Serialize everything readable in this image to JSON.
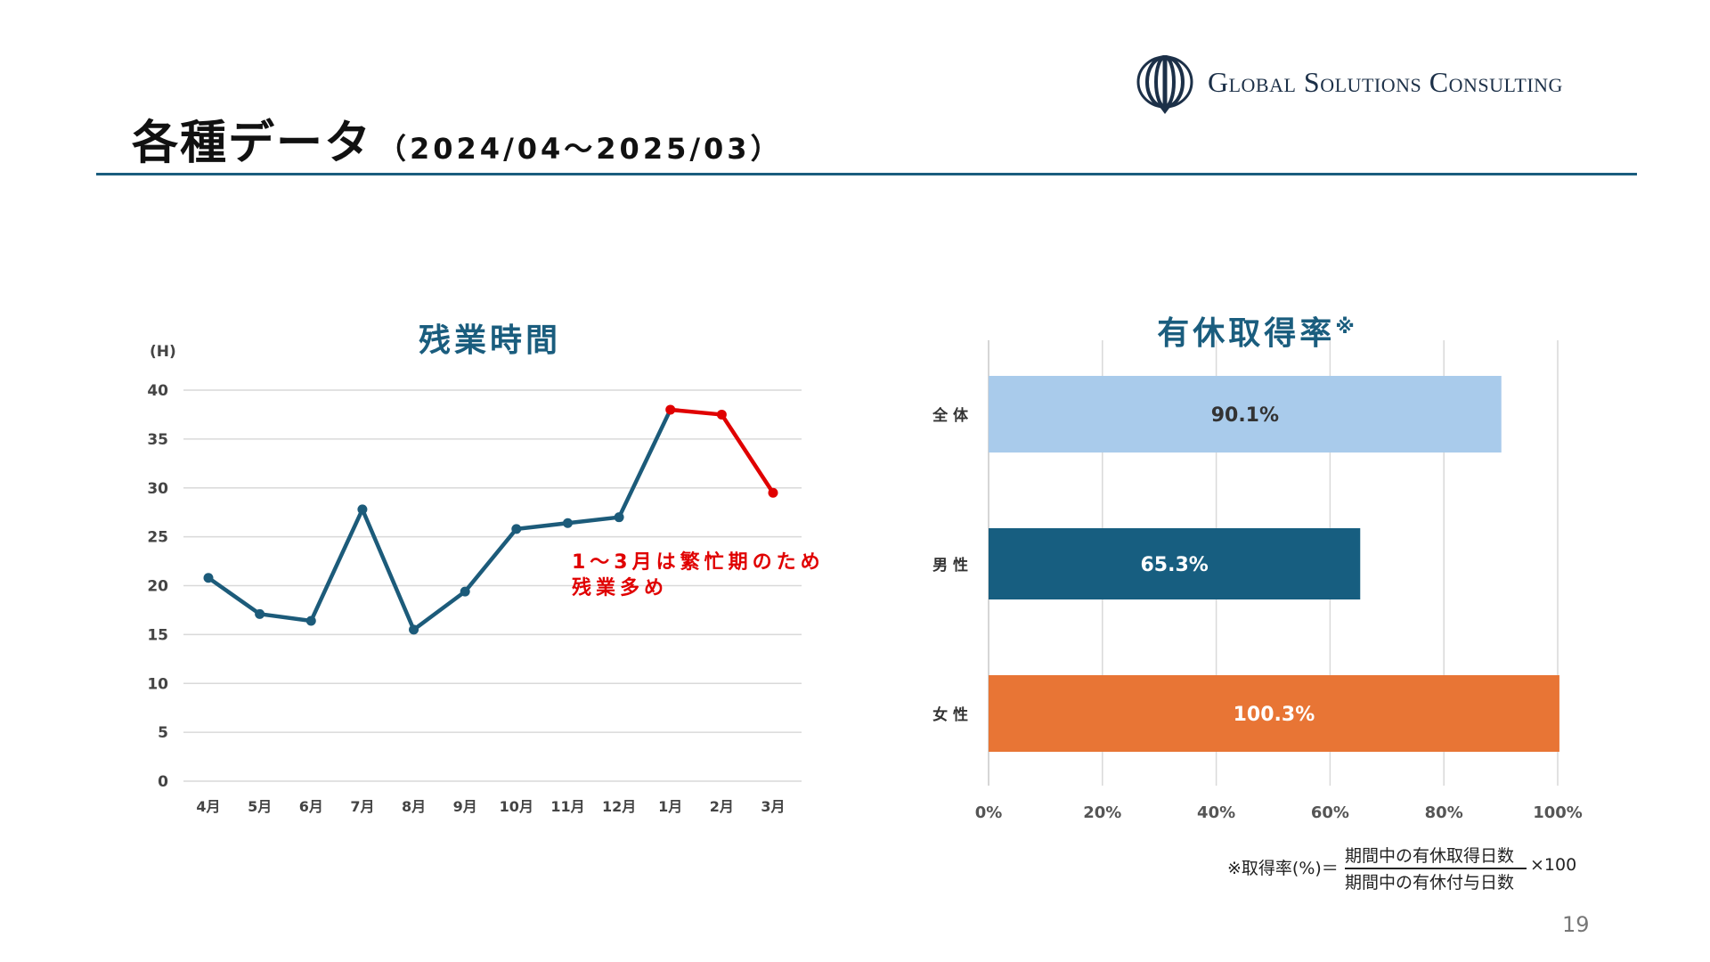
{
  "header": {
    "title": "各種データ",
    "period": "（2024/04～2025/03）"
  },
  "logo": {
    "text": "Global Solutions Consulting",
    "color": "#1c3048"
  },
  "colors": {
    "accent": "#1a5d7e",
    "line": "#1c5b7a",
    "highlight": "#e00000",
    "bar_all": "#a9cbeb",
    "bar_male": "#175e80",
    "bar_female": "#e87535",
    "grid": "#d9d9d9"
  },
  "chart_data": [
    {
      "type": "line",
      "title": "残業時間",
      "ylabel": "(H)",
      "categories": [
        "4月",
        "5月",
        "6月",
        "7月",
        "8月",
        "9月",
        "10月",
        "11月",
        "12月",
        "1月",
        "2月",
        "3月"
      ],
      "values": [
        20.8,
        17.1,
        16.4,
        27.8,
        15.5,
        19.4,
        25.8,
        26.4,
        27.0,
        38.0,
        37.5,
        29.5
      ],
      "highlight_from_index": 9,
      "ylim": [
        0,
        40
      ],
      "yticks": [
        0,
        5,
        10,
        15,
        20,
        25,
        30,
        35,
        40
      ],
      "grid": true,
      "annotation": [
        "1～3月は繁忙期のため",
        "残業多め"
      ]
    },
    {
      "type": "bar",
      "orientation": "horizontal",
      "title": "有休取得率",
      "title_mark": "※",
      "categories": [
        "全 体",
        "男 性",
        "女 性"
      ],
      "values": [
        90.1,
        65.3,
        100.3
      ],
      "data_labels": [
        "90.1%",
        "65.3%",
        "100.3%"
      ],
      "xlim": [
        0,
        100
      ],
      "xticks": [
        "0%",
        "20%",
        "40%",
        "60%",
        "80%",
        "100%"
      ],
      "grid": true
    }
  ],
  "footnote": {
    "prefix": "※取得率(%)＝",
    "numerator": "期間中の有休取得日数",
    "denominator": "期間中の有休付与日数",
    "multiplier": "×100"
  },
  "page_number": "19"
}
